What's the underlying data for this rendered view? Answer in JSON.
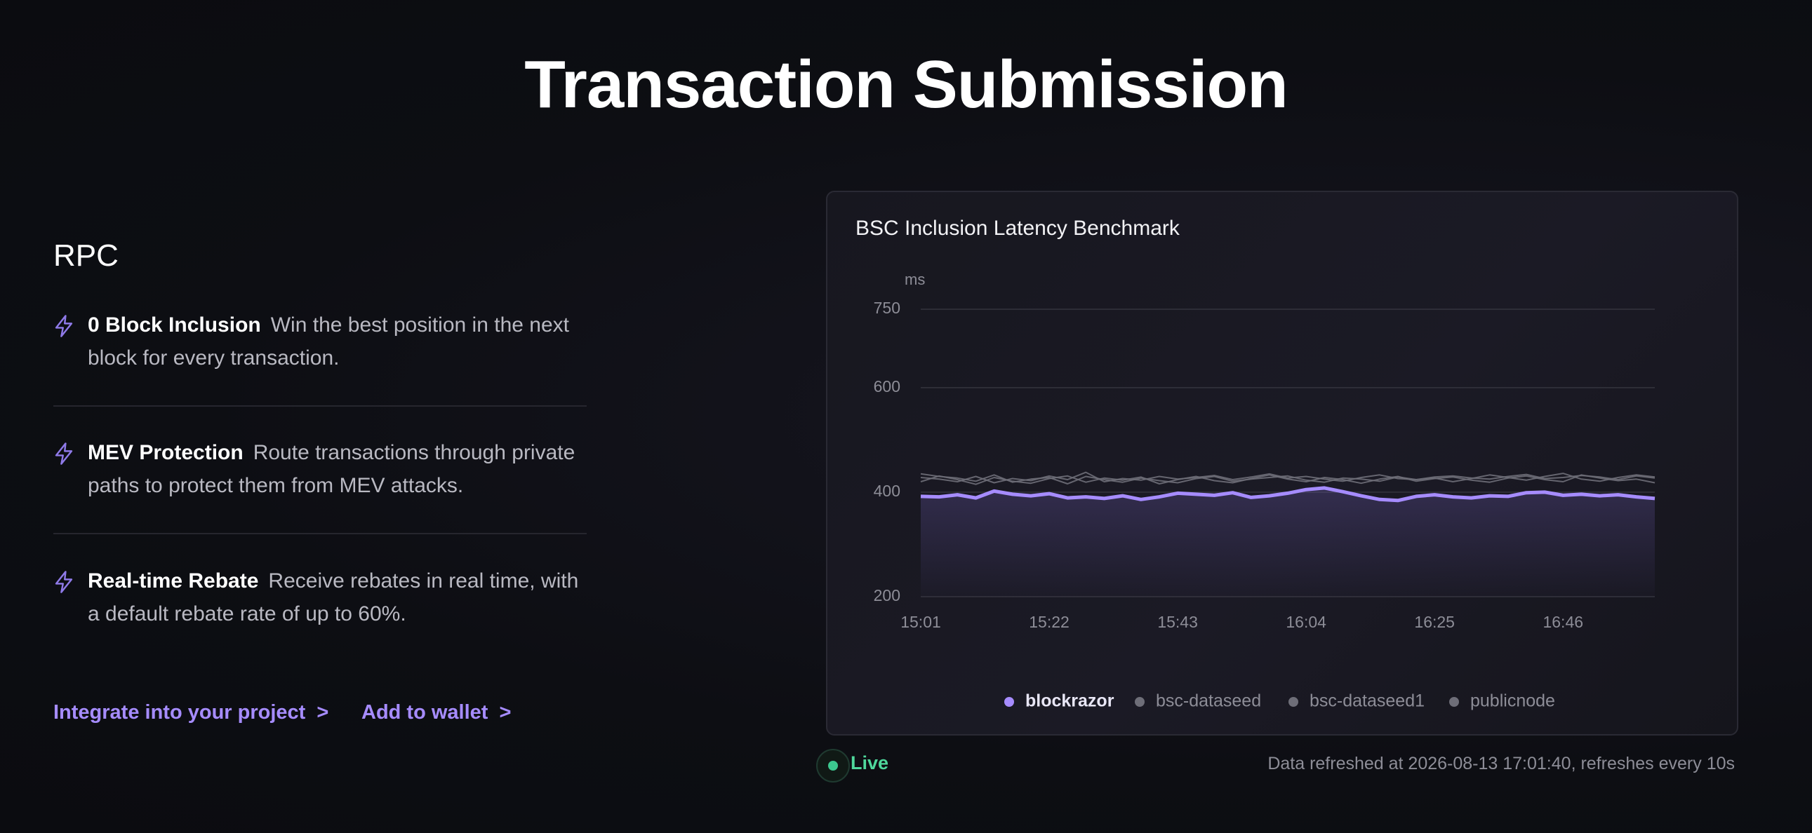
{
  "header": {
    "title": "Transaction Submission"
  },
  "section": {
    "title": "RPC"
  },
  "features": [
    {
      "title": "0 Block Inclusion",
      "text": "Win the best position in the next block for every transaction."
    },
    {
      "title": "MEV Protection",
      "text": "Route transactions through private paths to protect them from MEV attacks."
    },
    {
      "title": "Real-time Rebate",
      "text": "Receive rebates in real time, with a default rebate rate of up to 60%."
    }
  ],
  "links": [
    "Integrate into your project",
    "Add to wallet"
  ],
  "link_arrow": ">",
  "chart_data": {
    "type": "line",
    "title": "BSC Inclusion Latency Benchmark",
    "y_label": "ms",
    "categories": [
      "15:01",
      null,
      null,
      null,
      null,
      null,
      null,
      "15:22",
      null,
      null,
      null,
      null,
      null,
      null,
      "15:43",
      null,
      null,
      null,
      null,
      null,
      null,
      "16:04",
      null,
      null,
      null,
      null,
      null,
      null,
      "16:25",
      null,
      null,
      null,
      null,
      null,
      null,
      "16:46",
      null,
      null,
      null,
      null,
      null
    ],
    "ylim": [
      200,
      750
    ],
    "yticks": [
      200,
      400,
      600,
      750
    ],
    "grid": true,
    "series": [
      {
        "name": "blockrazor",
        "color": "#a68cff",
        "values": [
          392,
          391,
          395,
          389,
          402,
          396,
          393,
          397,
          389,
          391,
          388,
          393,
          386,
          391,
          398,
          396,
          394,
          399,
          390,
          393,
          398,
          405,
          408,
          401,
          393,
          386,
          384,
          392,
          395,
          391,
          389,
          393,
          392,
          399,
          400,
          394,
          396,
          393,
          395,
          391,
          388
        ]
      },
      {
        "name": "bsc-dataseed",
        "color": "#6e6e78",
        "values": [
          428,
          425,
          420,
          430,
          418,
          426,
          422,
          431,
          424,
          438,
          420,
          426,
          423,
          430,
          425,
          428,
          432,
          424,
          429,
          435,
          427,
          430,
          425,
          421,
          428,
          433,
          426,
          424,
          429,
          431,
          427,
          425,
          430,
          434,
          426,
          428,
          432,
          429,
          424,
          431,
          427
        ]
      },
      {
        "name": "bsc-dataseed1",
        "color": "#6e6e78",
        "values": [
          435,
          430,
          427,
          421,
          433,
          419,
          425,
          428,
          416,
          430,
          424,
          419,
          427,
          422,
          418,
          426,
          430,
          421,
          425,
          428,
          431,
          423,
          419,
          427,
          425,
          421,
          429,
          424,
          427,
          420,
          426,
          433,
          428,
          423,
          430,
          436,
          425,
          421,
          428,
          433,
          429
        ]
      },
      {
        "name": "publicnode",
        "color": "#6e6e78",
        "values": [
          420,
          431,
          424,
          415,
          428,
          421,
          417,
          426,
          431,
          419,
          427,
          423,
          429,
          416,
          424,
          430,
          422,
          418,
          426,
          433,
          425,
          420,
          428,
          424,
          417,
          425,
          430,
          421,
          426,
          429,
          423,
          419,
          427,
          431,
          424,
          420,
          433,
          427,
          422,
          425,
          418
        ]
      }
    ]
  },
  "status": {
    "live": "Live",
    "refresh": "Data refreshed at 2026-08-13 17:01:40, refreshes every 10s"
  }
}
